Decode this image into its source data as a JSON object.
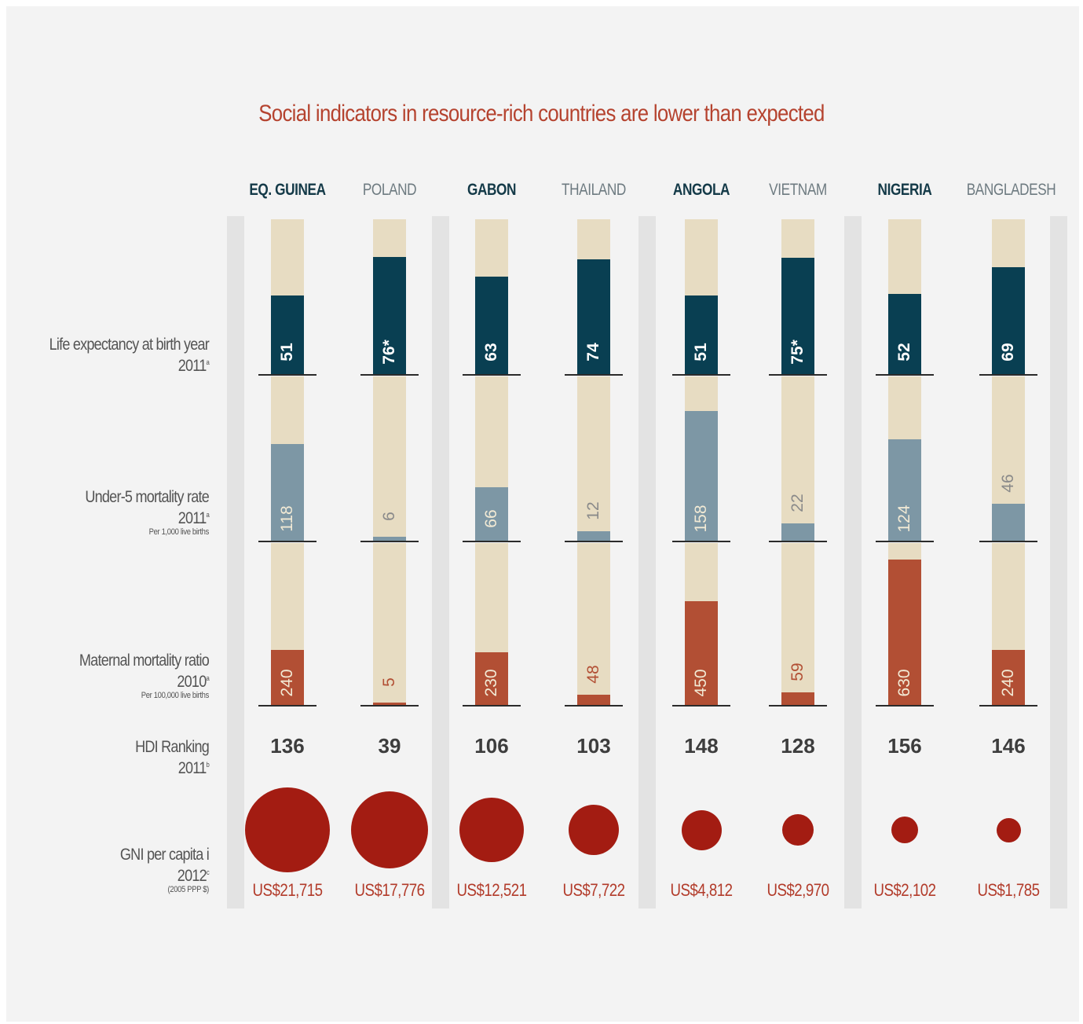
{
  "chart_data": {
    "type": "bar",
    "title": "Social indicators in resource-rich countries are lower than expected",
    "categories": [
      "EQ. GUINEA",
      "POLAND",
      "GABON",
      "THAILAND",
      "ANGOLA",
      "VIETNAM",
      "NIGERIA",
      "BANGLADESH"
    ],
    "resource_rich": [
      true,
      false,
      true,
      false,
      true,
      false,
      true,
      false
    ],
    "rows": [
      {
        "label": "Life expectancy at birth year",
        "year": "2011",
        "note_mark": "a",
        "sublabel": "",
        "values": [
          51,
          76,
          63,
          74,
          51,
          75,
          52,
          69
        ],
        "display": [
          "51",
          "76*",
          "63",
          "74",
          "51",
          "75*",
          "52",
          "69"
        ],
        "color": "#093f52"
      },
      {
        "label": "Under-5 mortality rate",
        "year": "2011",
        "note_mark": "a",
        "sublabel": "Per 1,000 live births",
        "values": [
          118,
          6,
          66,
          12,
          158,
          22,
          124,
          46
        ],
        "display": [
          "118",
          "6",
          "66",
          "12",
          "158",
          "22",
          "124",
          "46"
        ],
        "color": "#7d97a5"
      },
      {
        "label": "Maternal mortality ratio",
        "year": "2010",
        "note_mark": "a",
        "sublabel": "Per 100,000 live births",
        "values": [
          240,
          5,
          230,
          48,
          450,
          59,
          630,
          240
        ],
        "display": [
          "240",
          "5",
          "230",
          "48",
          "450",
          "59",
          "630",
          "240"
        ],
        "color": "#b24f34"
      }
    ],
    "hdi": {
      "label": "HDI Ranking",
      "year": "2011",
      "note_mark": "b",
      "values": [
        "136",
        "39",
        "106",
        "103",
        "148",
        "128",
        "156",
        "146"
      ]
    },
    "gni": {
      "label": "GNI per capita i",
      "year": "2012",
      "note_mark": "c",
      "sublabel": "(2005 PPP $)",
      "values": [
        21715,
        17776,
        12521,
        7722,
        4812,
        2970,
        2102,
        1785
      ],
      "display": [
        "US$21,715",
        "US$17,776",
        "US$12,521",
        "US$7,722",
        "US$4,812",
        "US$2,970",
        "US$2,102",
        "US$1,785"
      ],
      "color": "#a31c12"
    }
  }
}
